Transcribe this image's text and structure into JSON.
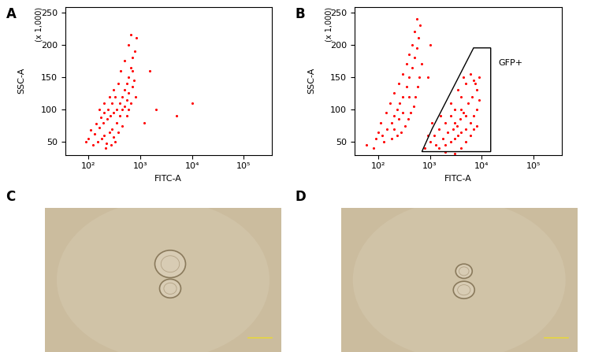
{
  "chart_data": [
    {
      "type": "scatter",
      "panel_label": "A",
      "x_label": "FITC-A",
      "y_label": "SSC-A",
      "axis_multiplier": "(x 1,000)",
      "log": "x",
      "color": "#ff0000",
      "marker": "o",
      "xlim": [
        35,
        350000
      ],
      "ylim": [
        30,
        258
      ],
      "xticks": [
        {
          "value": 100,
          "label": "10²"
        },
        {
          "value": 1000,
          "label": "10³"
        },
        {
          "value": 10000,
          "label": "10⁴"
        },
        {
          "value": 100000,
          "label": "10⁵"
        }
      ],
      "yticks": [
        50,
        100,
        150,
        200,
        250
      ],
      "x": [
        120,
        150,
        180,
        200,
        220,
        250,
        280,
        300,
        130,
        160,
        190,
        230,
        260,
        300,
        350,
        400,
        450,
        500,
        550,
        600,
        650,
        700,
        600,
        650,
        500,
        420,
        380,
        330,
        280,
        240,
        200,
        170,
        140,
        110,
        100,
        90,
        350,
        400,
        450,
        500,
        550,
        600,
        700,
        750,
        800,
        450,
        380,
        320,
        270,
        210,
        600,
        650,
        550,
        700,
        780,
        850,
        300,
        250,
        200,
        160,
        1200,
        2000,
        5000,
        10000,
        1500
      ],
      "values": [
        45,
        50,
        55,
        60,
        48,
        65,
        70,
        58,
        62,
        72,
        80,
        85,
        90,
        95,
        100,
        110,
        120,
        130,
        140,
        150,
        165,
        180,
        200,
        215,
        175,
        160,
        140,
        120,
        110,
        100,
        95,
        88,
        78,
        68,
        55,
        50,
        80,
        90,
        100,
        105,
        115,
        125,
        135,
        145,
        120,
        75,
        65,
        50,
        45,
        40,
        100,
        110,
        90,
        160,
        190,
        210,
        130,
        120,
        110,
        100,
        80,
        100,
        90,
        110,
        160
      ]
    },
    {
      "type": "scatter",
      "panel_label": "B",
      "x_label": "FITC-A",
      "y_label": "SSC-A",
      "axis_multiplier": "(x 1,000)",
      "log": "x",
      "color": "#ff0000",
      "marker": "o",
      "xlim": [
        35,
        350000
      ],
      "ylim": [
        30,
        258
      ],
      "xticks": [
        {
          "value": 100,
          "label": "10²"
        },
        {
          "value": 1000,
          "label": "10³"
        },
        {
          "value": 10000,
          "label": "10⁴"
        },
        {
          "value": 100000,
          "label": "10⁵"
        }
      ],
      "yticks": [
        50,
        100,
        150,
        200,
        250
      ],
      "x": [
        120,
        150,
        180,
        200,
        230,
        260,
        300,
        350,
        400,
        450,
        500,
        550,
        600,
        500,
        450,
        400,
        350,
        300,
        250,
        200,
        170,
        140,
        110,
        100,
        90,
        130,
        180,
        230,
        280,
        330,
        380,
        430,
        480,
        530,
        580,
        620,
        250,
        300,
        200,
        400,
        700,
        650,
        550,
        60,
        80,
        1000,
        900,
        1500,
        2000,
        2500,
        3000,
        3500,
        4000,
        5000,
        6000,
        7000,
        8000,
        9000,
        8000,
        7000,
        6000,
        5000,
        4000,
        3000,
        2500,
        2000,
        1500,
        1200,
        1000,
        1800,
        2200,
        2800,
        3300,
        3800,
        4500,
        5500,
        6500,
        7500,
        9000,
        1600,
        2500,
        3500,
        4500,
        2000,
        3000,
        4000,
        5000,
        6000,
        7000,
        8000,
        1300,
        800,
        900,
        1100,
        3000,
        4000,
        5000
      ],
      "values": [
        60,
        70,
        80,
        90,
        100,
        110,
        120,
        135,
        150,
        165,
        180,
        195,
        210,
        220,
        200,
        185,
        170,
        155,
        140,
        125,
        110,
        95,
        80,
        65,
        55,
        50,
        55,
        60,
        65,
        75,
        85,
        95,
        105,
        120,
        135,
        150,
        85,
        95,
        70,
        120,
        170,
        230,
        240,
        45,
        40,
        200,
        150,
        40,
        45,
        50,
        55,
        60,
        65,
        70,
        80,
        90,
        100,
        115,
        130,
        145,
        155,
        140,
        120,
        100,
        90,
        80,
        70,
        60,
        50,
        55,
        65,
        70,
        75,
        85,
        95,
        110,
        120,
        140,
        150,
        90,
        110,
        130,
        150,
        35,
        32,
        40,
        50,
        60,
        70,
        75,
        45,
        40,
        60,
        80,
        80,
        100,
        90
      ],
      "gate": {
        "label": "GFP+",
        "vertices_x": [
          700,
          1100,
          7000,
          15000,
          15000
        ],
        "vertices_y": [
          35,
          70,
          195,
          195,
          35
        ]
      }
    }
  ],
  "micrographs": [
    {
      "panel_label": "C"
    },
    {
      "panel_label": "D"
    }
  ]
}
